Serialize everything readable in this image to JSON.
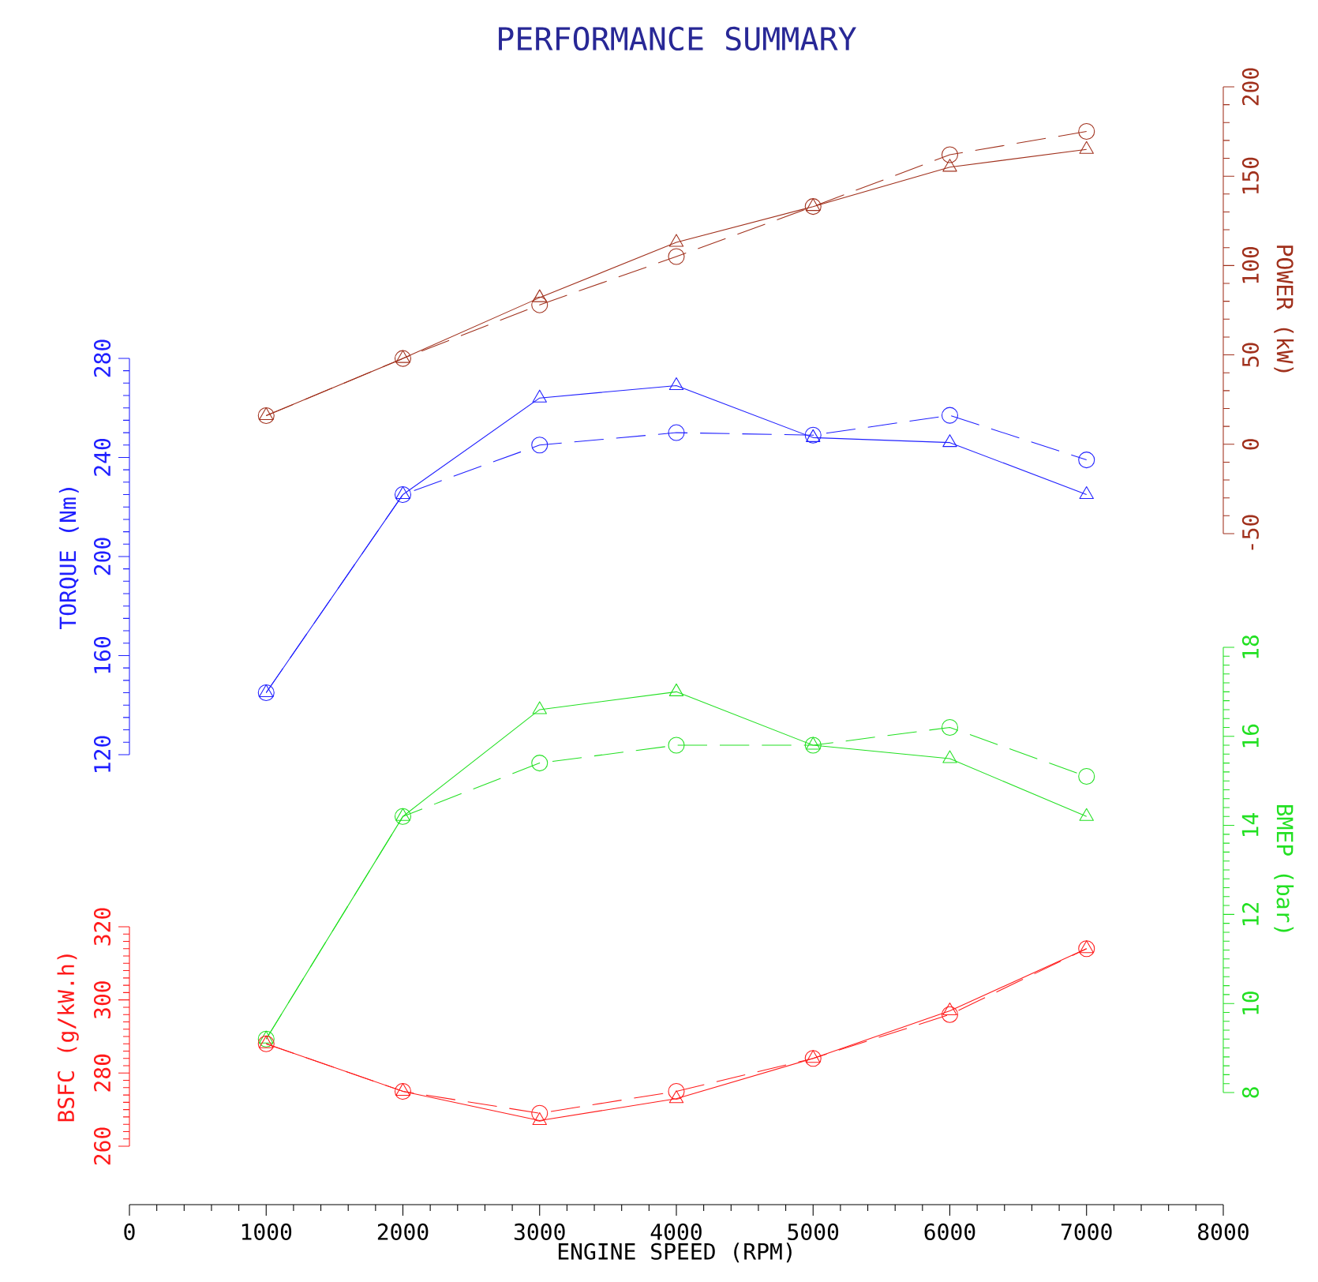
{
  "chart_data": [
    {
      "type": "line",
      "title": "PERFORMANCE SUMMARY",
      "ylabel": "POWER (kW)",
      "tick_labels": "y",
      "xlim": [
        0,
        8000
      ],
      "ylim": [
        -50,
        200
      ],
      "yticks": [
        -50,
        0,
        50,
        100,
        150,
        200
      ],
      "x": [
        1000,
        2000,
        3000,
        4000,
        5000,
        6000,
        7000
      ],
      "series": [
        {
          "color": "#a0301c",
          "marker": "triangle",
          "line_style": "solid",
          "values": [
            16,
            48,
            82,
            113,
            133,
            155,
            165
          ]
        },
        {
          "color": "#a0301c",
          "marker": "circle",
          "line_style": "dashed",
          "values": [
            16,
            48,
            78,
            105,
            133,
            162,
            175
          ]
        }
      ]
    },
    {
      "type": "line",
      "ylabel": "TORQUE (Nm)",
      "tick_labels": "y",
      "xlim": [
        0,
        8000
      ],
      "ylim": [
        120,
        280
      ],
      "yticks": [
        120,
        160,
        200,
        240,
        280
      ],
      "x": [
        1000,
        2000,
        3000,
        4000,
        5000,
        6000,
        7000
      ],
      "series": [
        {
          "color": "#1f1fff",
          "marker": "triangle",
          "line_style": "solid",
          "values": [
            145,
            225,
            264,
            269,
            248,
            246,
            225
          ]
        },
        {
          "color": "#1f1fff",
          "marker": "circle",
          "line_style": "dashed",
          "values": [
            145,
            225,
            245,
            250,
            249,
            257,
            239
          ]
        }
      ]
    },
    {
      "type": "line",
      "ylabel": "BMEP (bar)",
      "tick_labels": "y",
      "xlim": [
        0,
        8000
      ],
      "ylim": [
        8,
        18
      ],
      "yticks": [
        8,
        10,
        12,
        14,
        16,
        18
      ],
      "x": [
        1000,
        2000,
        3000,
        4000,
        5000,
        6000,
        7000
      ],
      "series": [
        {
          "color": "#22e022",
          "marker": "triangle",
          "line_style": "solid",
          "values": [
            9.2,
            14.2,
            16.6,
            17.0,
            15.8,
            15.5,
            14.2
          ]
        },
        {
          "color": "#22e022",
          "marker": "circle",
          "line_style": "dashed",
          "values": [
            9.2,
            14.2,
            15.4,
            15.8,
            15.8,
            16.2,
            15.1
          ]
        }
      ]
    },
    {
      "type": "line",
      "ylabel": "BSFC (g/kW.h)",
      "xlabel": "ENGINE SPEED (RPM)",
      "xlim": [
        0,
        8000
      ],
      "xticks": [
        0,
        1000,
        2000,
        3000,
        4000,
        5000,
        6000,
        7000,
        8000
      ],
      "ylim": [
        260,
        320
      ],
      "yticks": [
        260,
        280,
        300,
        320
      ],
      "x": [
        1000,
        2000,
        3000,
        4000,
        5000,
        6000,
        7000
      ],
      "series": [
        {
          "color": "#ff1a1a",
          "marker": "triangle",
          "line_style": "solid",
          "values": [
            288,
            275,
            267,
            273,
            284,
            297,
            314
          ]
        },
        {
          "color": "#ff1a1a",
          "marker": "circle",
          "line_style": "dashed",
          "values": [
            288,
            275,
            269,
            275,
            284,
            296,
            314
          ]
        }
      ]
    }
  ]
}
